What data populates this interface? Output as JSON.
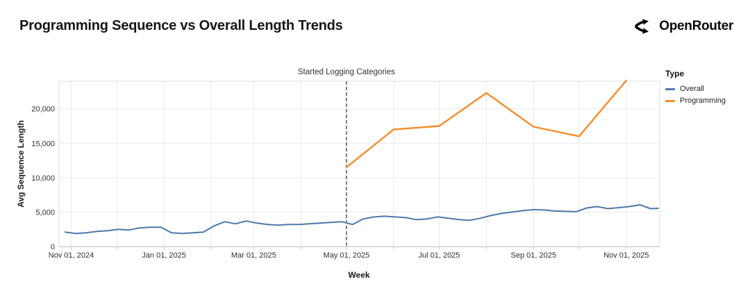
{
  "header": {
    "title": "Programming Sequence vs Overall Length Trends",
    "brand": "OpenRouter"
  },
  "chart_data": {
    "type": "line",
    "xlabel": "Week",
    "ylabel": "Avg Sequence Length",
    "x_domain": [
      "2024-10-24",
      "2025-11-23"
    ],
    "ylim": [
      0,
      24000
    ],
    "grid": true,
    "colors": {
      "overall": "#4c78a8",
      "programming": "#f28e2c",
      "annotation_rule": "#555555",
      "gridline": "#e9e9e9",
      "border": "#dcdcdc"
    },
    "y_ticks": [
      {
        "v": 0,
        "label": "0"
      },
      {
        "v": 5000,
        "label": "5,000"
      },
      {
        "v": 10000,
        "label": "10,000"
      },
      {
        "v": 15000,
        "label": "15,000"
      },
      {
        "v": 20000,
        "label": "20,000"
      }
    ],
    "x_ticks": [
      {
        "d": "2024-11-01",
        "label": "Nov 01, 2024"
      },
      {
        "d": "2024-12-01",
        "label": ""
      },
      {
        "d": "2025-01-01",
        "label": "Jan 01, 2025"
      },
      {
        "d": "2025-02-01",
        "label": ""
      },
      {
        "d": "2025-03-01",
        "label": "Mar 01, 2025"
      },
      {
        "d": "2025-04-01",
        "label": ""
      },
      {
        "d": "2025-05-01",
        "label": "May 01, 2025"
      },
      {
        "d": "2025-06-01",
        "label": ""
      },
      {
        "d": "2025-07-01",
        "label": "Jul 01, 2025"
      },
      {
        "d": "2025-08-01",
        "label": ""
      },
      {
        "d": "2025-09-01",
        "label": "Sep 01, 2025"
      },
      {
        "d": "2025-10-01",
        "label": ""
      },
      {
        "d": "2025-11-01",
        "label": "Nov 01, 2025"
      }
    ],
    "annotation": {
      "label": "Started Logging Categories",
      "date": "2025-05-01"
    },
    "legend": {
      "title": "Type",
      "items": [
        {
          "name": "Overall",
          "color": "#4c78a8"
        },
        {
          "name": "Programming",
          "color": "#f28e2c"
        }
      ]
    },
    "series": [
      {
        "name": "Overall",
        "color": "#4c78a8",
        "width": 2,
        "points": [
          [
            "2024-10-28",
            2100
          ],
          [
            "2024-11-04",
            1900
          ],
          [
            "2024-11-11",
            2000
          ],
          [
            "2024-11-18",
            2200
          ],
          [
            "2024-11-25",
            2300
          ],
          [
            "2024-12-02",
            2500
          ],
          [
            "2024-12-09",
            2400
          ],
          [
            "2024-12-16",
            2700
          ],
          [
            "2024-12-23",
            2800
          ],
          [
            "2024-12-30",
            2800
          ],
          [
            "2025-01-06",
            2000
          ],
          [
            "2025-01-13",
            1900
          ],
          [
            "2025-01-20",
            2000
          ],
          [
            "2025-01-27",
            2100
          ],
          [
            "2025-02-03",
            3000
          ],
          [
            "2025-02-10",
            3600
          ],
          [
            "2025-02-17",
            3300
          ],
          [
            "2025-02-24",
            3700
          ],
          [
            "2025-03-03",
            3400
          ],
          [
            "2025-03-10",
            3200
          ],
          [
            "2025-03-17",
            3100
          ],
          [
            "2025-03-24",
            3200
          ],
          [
            "2025-03-31",
            3200
          ],
          [
            "2025-04-07",
            3300
          ],
          [
            "2025-04-14",
            3400
          ],
          [
            "2025-04-21",
            3500
          ],
          [
            "2025-04-28",
            3600
          ],
          [
            "2025-05-05",
            3200
          ],
          [
            "2025-05-12",
            4000
          ],
          [
            "2025-05-19",
            4300
          ],
          [
            "2025-05-26",
            4400
          ],
          [
            "2025-06-02",
            4300
          ],
          [
            "2025-06-09",
            4200
          ],
          [
            "2025-06-16",
            3900
          ],
          [
            "2025-06-23",
            4000
          ],
          [
            "2025-06-30",
            4300
          ],
          [
            "2025-07-07",
            4100
          ],
          [
            "2025-07-14",
            3900
          ],
          [
            "2025-07-21",
            3800
          ],
          [
            "2025-07-28",
            4100
          ],
          [
            "2025-08-04",
            4500
          ],
          [
            "2025-08-11",
            4800
          ],
          [
            "2025-08-18",
            5000
          ],
          [
            "2025-08-25",
            5200
          ],
          [
            "2025-09-01",
            5350
          ],
          [
            "2025-09-08",
            5300
          ],
          [
            "2025-09-15",
            5150
          ],
          [
            "2025-09-22",
            5100
          ],
          [
            "2025-09-29",
            5050
          ],
          [
            "2025-10-06",
            5600
          ],
          [
            "2025-10-13",
            5800
          ],
          [
            "2025-10-20",
            5500
          ],
          [
            "2025-10-27",
            5650
          ],
          [
            "2025-11-03",
            5800
          ],
          [
            "2025-11-10",
            6050
          ],
          [
            "2025-11-17",
            5500
          ],
          [
            "2025-11-22",
            5550
          ]
        ]
      },
      {
        "name": "Programming",
        "color": "#f28e2c",
        "width": 2.4,
        "points": [
          [
            "2025-05-01",
            11500
          ],
          [
            "2025-06-01",
            17000
          ],
          [
            "2025-07-01",
            17500
          ],
          [
            "2025-08-01",
            22300
          ],
          [
            "2025-09-01",
            17400
          ],
          [
            "2025-10-01",
            16000
          ],
          [
            "2025-11-01",
            24100
          ]
        ]
      }
    ]
  }
}
